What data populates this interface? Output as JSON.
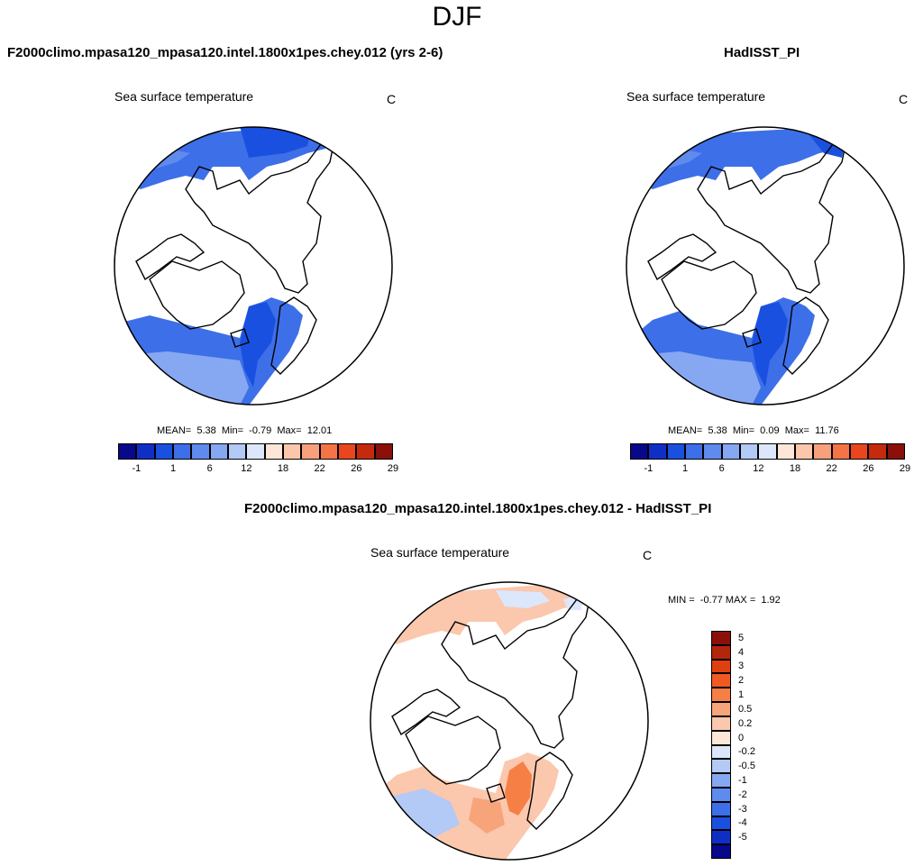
{
  "title": "DJF",
  "panels": [
    {
      "title": "F2000climo.mpasa120_mpasa120.intel.1800x1pes.chey.012 (yrs 2-6)",
      "field": "Sea surface temperature",
      "units": "C",
      "mean_label": "MEAN=",
      "mean": "5.38",
      "min_label": "Min=",
      "min": "-0.79",
      "max_label": "Max=",
      "max": "12.01"
    },
    {
      "title": "HadISST_PI",
      "field": "Sea surface temperature",
      "units": "C",
      "mean_label": "MEAN=",
      "mean": "5.38",
      "min_label": "Min=",
      "min": "0.09",
      "max_label": "Max=",
      "max": "11.76"
    }
  ],
  "diff_panel": {
    "title": "F2000climo.mpasa120_mpasa120.intel.1800x1pes.chey.012 - HadISST_PI",
    "field": "Sea surface temperature",
    "units": "C",
    "min_label": "MIN =",
    "min": "-0.77",
    "max_label": "MAX =",
    "max": "1.92"
  },
  "colorbars": {
    "sst": {
      "ticks": [
        "-1",
        "1",
        "6",
        "12",
        "18",
        "22",
        "26",
        "29"
      ],
      "colors": [
        "#08088a",
        "#0f2fc4",
        "#1a50e0",
        "#3d6fe8",
        "#5f8aee",
        "#86a8f2",
        "#b3c9f6",
        "#dde7fb",
        "#fde6d8",
        "#fbc6ac",
        "#f8a07c",
        "#f47447",
        "#e9461e",
        "#c42a0e",
        "#8a1009"
      ]
    },
    "diff": {
      "ticks": [
        "5",
        "4",
        "3",
        "2",
        "1",
        "0.5",
        "0.2",
        "0",
        "-0.2",
        "-0.5",
        "-1",
        "-2",
        "-3",
        "-4",
        "-5"
      ],
      "colors": [
        "#8a1009",
        "#b3260c",
        "#e0400f",
        "#f05a22",
        "#f57f45",
        "#f8a47a",
        "#fbc7ad",
        "#fde6d8",
        "#dde7fb",
        "#b3c9f6",
        "#86a8f2",
        "#5f8aee",
        "#3d6fe8",
        "#1a50e0",
        "#0f2fc4",
        "#08088a"
      ]
    }
  }
}
